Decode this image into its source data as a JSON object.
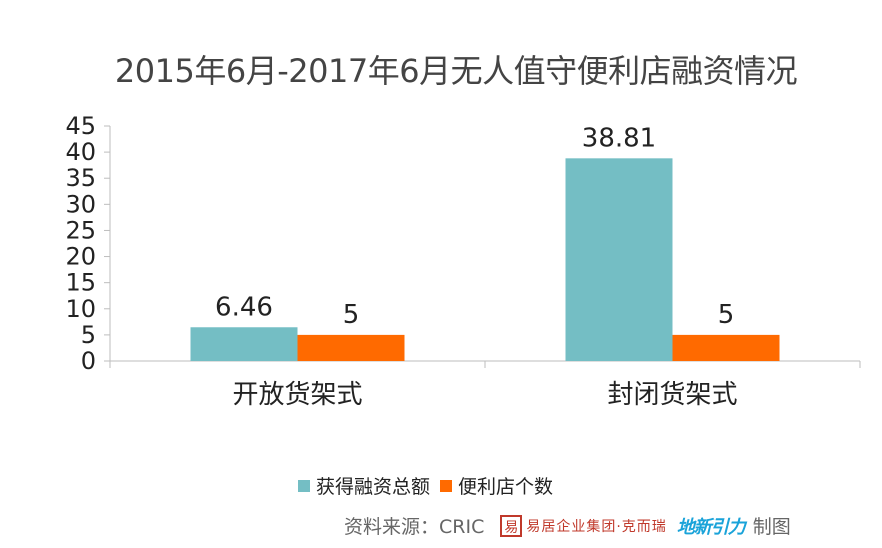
{
  "chart_data": {
    "type": "bar",
    "title": "2015年6月-2017年6月无人值守便利店融资情况",
    "categories": [
      "开放货架式",
      "封闭货架式"
    ],
    "series": [
      {
        "name": "获得融资总额",
        "values": [
          6.46,
          38.81
        ],
        "labels": [
          "6.46",
          "38.81"
        ],
        "color": "#74bec4"
      },
      {
        "name": "便利店个数",
        "values": [
          5,
          5
        ],
        "labels": [
          "5",
          "5"
        ],
        "color": "#ff6a00"
      }
    ],
    "ylim": [
      0,
      45
    ],
    "yticks": [
      "0",
      "5",
      "10",
      "15",
      "20",
      "25",
      "30",
      "35",
      "40",
      "45"
    ],
    "xlabel": "",
    "ylabel": "",
    "legend": "bottom",
    "grid": false
  },
  "footer": {
    "source": "资料来源：CRIC",
    "logo1_mark": "易",
    "logo1_text": "易居企业集团·克而瑞",
    "logo2_text": "地新引力",
    "made": "制图"
  }
}
